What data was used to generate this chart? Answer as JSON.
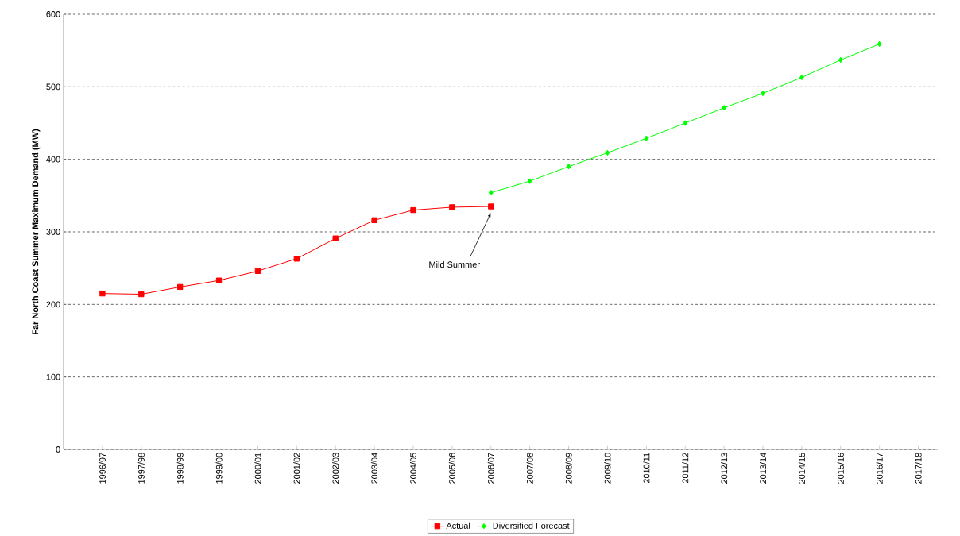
{
  "chart_data": {
    "type": "line",
    "ylabel": "Far North Coast Summer Maximum Demand (MW)",
    "categories": [
      "1996/97",
      "1997/98",
      "1998/99",
      "1999/00",
      "2000/01",
      "2001/02",
      "2002/03",
      "2003/04",
      "2004/05",
      "2005/06",
      "2006/07",
      "2007/08",
      "2008/09",
      "2009/10",
      "2010/11",
      "2011/12",
      "2012/13",
      "2013/14",
      "2014/15",
      "2015/16",
      "2016/17",
      "2017/18"
    ],
    "series": [
      {
        "name": "Actual",
        "color": "#ff0000",
        "marker": "square",
        "values": [
          215,
          214,
          224,
          233,
          246,
          263,
          291,
          316,
          330,
          334,
          335,
          null,
          null,
          null,
          null,
          null,
          null,
          null,
          null,
          null,
          null,
          null
        ]
      },
      {
        "name": "Diversified Forecast",
        "color": "#00ff00",
        "marker": "diamond",
        "values": [
          null,
          null,
          null,
          null,
          null,
          null,
          null,
          null,
          null,
          null,
          354,
          370,
          390,
          409,
          429,
          450,
          471,
          491,
          513,
          537,
          559,
          null
        ]
      }
    ],
    "ylim": [
      0,
      600
    ],
    "yticks": [
      0,
      100,
      200,
      300,
      400,
      500,
      600
    ],
    "grid": "y",
    "legend": "bottom",
    "annotations": [
      "Mild Summer"
    ]
  }
}
